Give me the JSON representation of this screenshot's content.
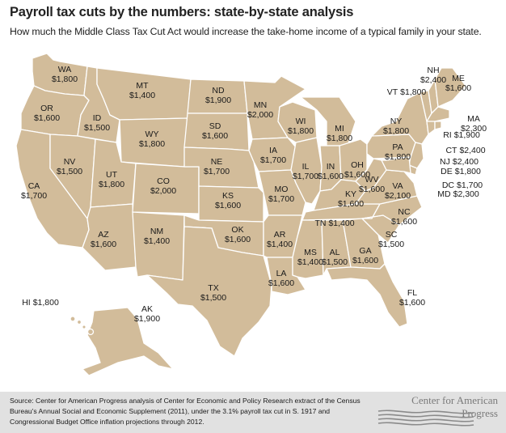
{
  "header": {
    "title": "Payroll tax cuts by the numbers: state-by-state analysis",
    "subtitle": "How much the Middle Class Tax Cut Act would increase the take-home income of a typical family in your state."
  },
  "colors": {
    "land": "#d2bc9a",
    "border": "#ffffff",
    "footer_bg": "#e1e1e1",
    "logo": "#8a8a8a"
  },
  "states": [
    {
      "abbr": "WA",
      "amount": "$1,800"
    },
    {
      "abbr": "OR",
      "amount": "$1,600"
    },
    {
      "abbr": "CA",
      "amount": "$1,700"
    },
    {
      "abbr": "ID",
      "amount": "$1,500"
    },
    {
      "abbr": "NV",
      "amount": "$1,500"
    },
    {
      "abbr": "MT",
      "amount": "$1,400"
    },
    {
      "abbr": "WY",
      "amount": "$1,800"
    },
    {
      "abbr": "UT",
      "amount": "$1,800"
    },
    {
      "abbr": "AZ",
      "amount": "$1,600"
    },
    {
      "abbr": "CO",
      "amount": "$2,000"
    },
    {
      "abbr": "NM",
      "amount": "$1,400"
    },
    {
      "abbr": "ND",
      "amount": "$1,900"
    },
    {
      "abbr": "SD",
      "amount": "$1,600"
    },
    {
      "abbr": "NE",
      "amount": "$1,700"
    },
    {
      "abbr": "KS",
      "amount": "$1,600"
    },
    {
      "abbr": "OK",
      "amount": "$1,600"
    },
    {
      "abbr": "TX",
      "amount": "$1,500"
    },
    {
      "abbr": "MN",
      "amount": "$2,000"
    },
    {
      "abbr": "IA",
      "amount": "$1,700"
    },
    {
      "abbr": "MO",
      "amount": "$1,700"
    },
    {
      "abbr": "AR",
      "amount": "$1,400"
    },
    {
      "abbr": "LA",
      "amount": "$1,600"
    },
    {
      "abbr": "WI",
      "amount": "$1,800"
    },
    {
      "abbr": "IL",
      "amount": "$1,700"
    },
    {
      "abbr": "MI",
      "amount": "$1,800"
    },
    {
      "abbr": "IN",
      "amount": "$1,600"
    },
    {
      "abbr": "OH",
      "amount": "$1,600"
    },
    {
      "abbr": "KY",
      "amount": "$1,600"
    },
    {
      "abbr": "TN",
      "amount": "$1,400"
    },
    {
      "abbr": "MS",
      "amount": "$1,400"
    },
    {
      "abbr": "AL",
      "amount": "$1,500"
    },
    {
      "abbr": "GA",
      "amount": "$1,600"
    },
    {
      "abbr": "FL",
      "amount": "$1,600"
    },
    {
      "abbr": "SC",
      "amount": "$1,500"
    },
    {
      "abbr": "NC",
      "amount": "$1,600"
    },
    {
      "abbr": "VA",
      "amount": "$2,100"
    },
    {
      "abbr": "WV",
      "amount": "$1,600"
    },
    {
      "abbr": "PA",
      "amount": "$1,800"
    },
    {
      "abbr": "NY",
      "amount": "$1,800"
    },
    {
      "abbr": "VT",
      "amount": "$1,800"
    },
    {
      "abbr": "NH",
      "amount": "$2,400"
    },
    {
      "abbr": "ME",
      "amount": "$1,600"
    },
    {
      "abbr": "MA",
      "amount": "$2,300"
    },
    {
      "abbr": "RI",
      "amount": "$1,900"
    },
    {
      "abbr": "CT",
      "amount": "$2,400"
    },
    {
      "abbr": "NJ",
      "amount": "$2,400"
    },
    {
      "abbr": "DE",
      "amount": "$1,800"
    },
    {
      "abbr": "DC",
      "amount": "$1,700"
    },
    {
      "abbr": "MD",
      "amount": "$2,300"
    },
    {
      "abbr": "HI",
      "amount": "$1,800"
    },
    {
      "abbr": "AK",
      "amount": "$1,900"
    }
  ],
  "footer": {
    "source": "Source: Center for American Progress analysis of Center for Economic and Policy Research extract of the Census Bureau's Annual Social and Economic Supplement (2011), under the 3.1% payroll tax cut in S. 1917 and Congressional Budget Office inflation projections through 2012.",
    "logo_text": "Center for American Progress"
  }
}
